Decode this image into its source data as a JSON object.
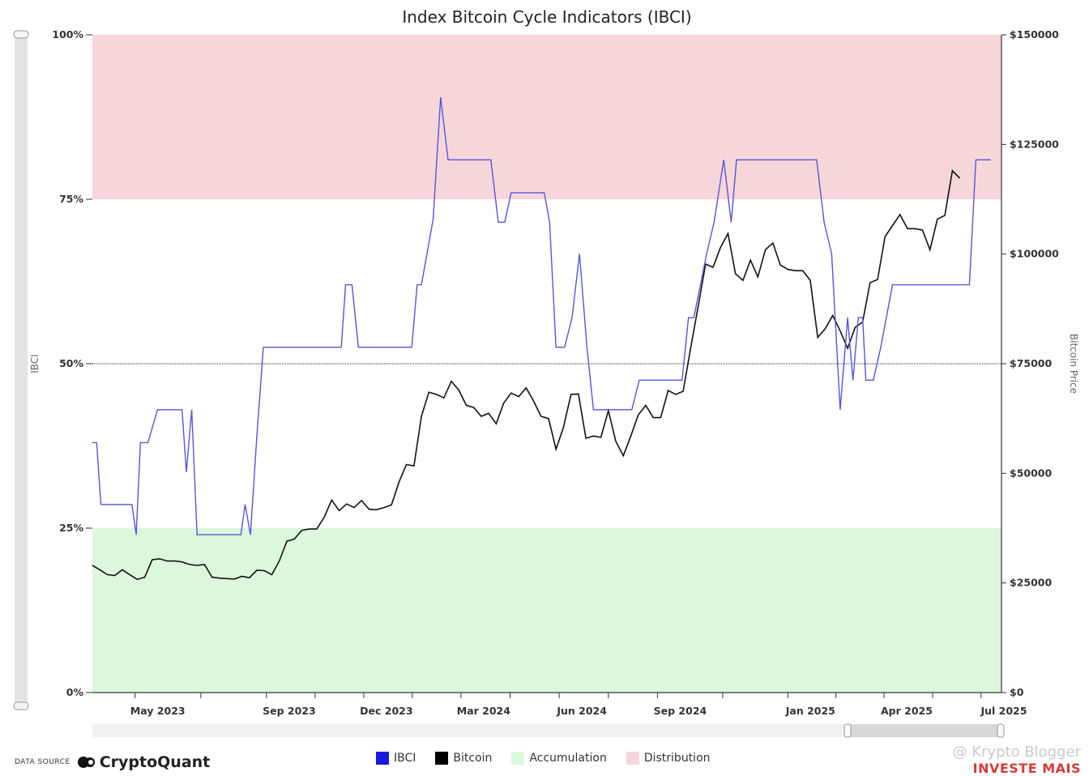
{
  "chart_data": {
    "type": "line",
    "title": "Index Bitcoin Cycle Indicators (IBCI)",
    "y_left_label": "IBCI",
    "y_right_label": "Bitcoin Price",
    "y_left_ticks": [
      "0%",
      "25%",
      "50%",
      "75%",
      "100%"
    ],
    "y_right_ticks": [
      "$0",
      "$25000",
      "$50000",
      "$75000",
      "$100000",
      "$125000",
      "$150000"
    ],
    "ylim_left": [
      0,
      100
    ],
    "ylim_right": [
      0,
      150000
    ],
    "x_range": [
      "2023-03-22",
      "2025-07-20"
    ],
    "x_ticks": [
      {
        "date": "2023-05-01",
        "label": "May 2023"
      },
      {
        "date": "2023-09-01",
        "label": "Sep 2023"
      },
      {
        "date": "2023-12-01",
        "label": "Dec 2023"
      },
      {
        "date": "2024-03-01",
        "label": "Mar 2024"
      },
      {
        "date": "2024-06-01",
        "label": "Jun 2024"
      },
      {
        "date": "2024-09-01",
        "label": "Sep 2024"
      },
      {
        "date": "2025-01-01",
        "label": "Jan 2025"
      },
      {
        "date": "2025-04-01",
        "label": "Apr 2025"
      },
      {
        "date": "2025-07-01",
        "label": "Jul 2025"
      }
    ],
    "reference_line": 50,
    "zones": [
      {
        "name": "Accumulation",
        "from": 0,
        "to": 25,
        "color": "#dcf8dc"
      },
      {
        "name": "Distribution",
        "from": 75,
        "to": 100,
        "color": "#f6d6d8"
      }
    ],
    "series": [
      {
        "name": "IBCI",
        "color": "#5555dd",
        "points": [
          [
            "2023-03-22",
            38
          ],
          [
            "2023-03-26",
            38
          ],
          [
            "2023-03-30",
            28.6
          ],
          [
            "2023-04-28",
            28.6
          ],
          [
            "2023-05-02",
            24
          ],
          [
            "2023-05-06",
            38
          ],
          [
            "2023-05-13",
            38
          ],
          [
            "2023-05-22",
            43
          ],
          [
            "2023-06-14",
            43
          ],
          [
            "2023-06-18",
            33.5
          ],
          [
            "2023-06-23",
            43
          ],
          [
            "2023-06-28",
            24
          ],
          [
            "2023-08-08",
            24
          ],
          [
            "2023-08-12",
            28.6
          ],
          [
            "2023-08-17",
            24
          ],
          [
            "2023-08-23",
            39
          ],
          [
            "2023-08-29",
            52.5
          ],
          [
            "2023-11-10",
            52.5
          ],
          [
            "2023-11-14",
            62
          ],
          [
            "2023-11-20",
            62
          ],
          [
            "2023-11-26",
            52.5
          ],
          [
            "2024-01-15",
            52.5
          ],
          [
            "2024-01-20",
            62
          ],
          [
            "2024-01-24",
            62
          ],
          [
            "2024-02-04",
            72
          ],
          [
            "2024-02-11",
            90.5
          ],
          [
            "2024-02-18",
            81
          ],
          [
            "2024-03-29",
            81
          ],
          [
            "2024-04-05",
            71.5
          ],
          [
            "2024-04-11",
            71.5
          ],
          [
            "2024-04-17",
            76
          ],
          [
            "2024-05-18",
            76
          ],
          [
            "2024-05-23",
            71.5
          ],
          [
            "2024-05-29",
            52.5
          ],
          [
            "2024-06-06",
            52.5
          ],
          [
            "2024-06-13",
            57
          ],
          [
            "2024-06-20",
            66.7
          ],
          [
            "2024-06-27",
            52.5
          ],
          [
            "2024-07-03",
            43
          ],
          [
            "2024-08-08",
            43
          ],
          [
            "2024-08-15",
            47.5
          ],
          [
            "2024-09-24",
            47.5
          ],
          [
            "2024-09-30",
            57
          ],
          [
            "2024-10-05",
            57
          ],
          [
            "2024-10-17",
            66.7
          ],
          [
            "2024-10-24",
            71.5
          ],
          [
            "2024-11-02",
            81
          ],
          [
            "2024-11-09",
            71.5
          ],
          [
            "2024-11-14",
            81
          ],
          [
            "2025-01-28",
            81
          ],
          [
            "2025-02-04",
            71.5
          ],
          [
            "2025-02-11",
            66.7
          ],
          [
            "2025-02-19",
            43
          ],
          [
            "2025-02-26",
            57
          ],
          [
            "2025-03-03",
            47.5
          ],
          [
            "2025-03-08",
            57
          ],
          [
            "2025-03-12",
            57
          ],
          [
            "2025-03-15",
            47.5
          ],
          [
            "2025-03-22",
            47.5
          ],
          [
            "2025-03-29",
            52.5
          ],
          [
            "2025-04-09",
            62
          ],
          [
            "2025-06-20",
            62
          ],
          [
            "2025-06-26",
            81
          ],
          [
            "2025-07-10",
            81
          ]
        ]
      },
      {
        "name": "Bitcoin",
        "color": "#111111",
        "points": [
          [
            "2023-03-22",
            29000
          ],
          [
            "2023-03-29",
            28000
          ],
          [
            "2023-04-05",
            26900
          ],
          [
            "2023-04-12",
            26700
          ],
          [
            "2023-04-19",
            28000
          ],
          [
            "2023-04-26",
            26900
          ],
          [
            "2023-05-03",
            25800
          ],
          [
            "2023-05-10",
            26300
          ],
          [
            "2023-05-17",
            30300
          ],
          [
            "2023-05-24",
            30500
          ],
          [
            "2023-05-31",
            30000
          ],
          [
            "2023-06-07",
            30000
          ],
          [
            "2023-06-14",
            29800
          ],
          [
            "2023-06-21",
            29200
          ],
          [
            "2023-06-28",
            29000
          ],
          [
            "2023-07-05",
            29200
          ],
          [
            "2023-07-12",
            26300
          ],
          [
            "2023-07-19",
            26100
          ],
          [
            "2023-07-26",
            26000
          ],
          [
            "2023-08-02",
            25900
          ],
          [
            "2023-08-09",
            26500
          ],
          [
            "2023-08-16",
            26200
          ],
          [
            "2023-08-23",
            27900
          ],
          [
            "2023-08-30",
            27800
          ],
          [
            "2023-09-06",
            26900
          ],
          [
            "2023-09-13",
            30000
          ],
          [
            "2023-09-20",
            34500
          ],
          [
            "2023-09-27",
            35000
          ],
          [
            "2023-10-04",
            37000
          ],
          [
            "2023-10-11",
            37300
          ],
          [
            "2023-10-18",
            37300
          ],
          [
            "2023-10-25",
            40000
          ],
          [
            "2023-11-01",
            43900
          ],
          [
            "2023-11-08",
            41500
          ],
          [
            "2023-11-15",
            43000
          ],
          [
            "2023-11-22",
            42200
          ],
          [
            "2023-11-29",
            43800
          ],
          [
            "2023-12-06",
            41800
          ],
          [
            "2023-12-13",
            41700
          ],
          [
            "2023-12-20",
            42200
          ],
          [
            "2023-12-27",
            42800
          ],
          [
            "2024-01-03",
            48000
          ],
          [
            "2024-01-10",
            52000
          ],
          [
            "2024-01-17",
            51700
          ],
          [
            "2024-01-24",
            63000
          ],
          [
            "2024-01-31",
            68500
          ],
          [
            "2024-02-07",
            68000
          ],
          [
            "2024-02-14",
            67200
          ],
          [
            "2024-02-21",
            71000
          ],
          [
            "2024-02-28",
            69000
          ],
          [
            "2024-03-06",
            65500
          ],
          [
            "2024-03-13",
            65000
          ],
          [
            "2024-03-20",
            63000
          ],
          [
            "2024-03-27",
            63700
          ],
          [
            "2024-04-03",
            61300
          ],
          [
            "2024-04-10",
            66000
          ],
          [
            "2024-04-17",
            68300
          ],
          [
            "2024-04-24",
            67500
          ],
          [
            "2024-05-01",
            69500
          ],
          [
            "2024-05-08",
            66500
          ],
          [
            "2024-05-15",
            63000
          ],
          [
            "2024-05-22",
            62500
          ],
          [
            "2024-05-29",
            55500
          ],
          [
            "2024-06-05",
            60500
          ],
          [
            "2024-06-12",
            68000
          ],
          [
            "2024-06-19",
            68100
          ],
          [
            "2024-06-26",
            58000
          ],
          [
            "2024-07-03",
            58500
          ],
          [
            "2024-07-10",
            58200
          ],
          [
            "2024-07-17",
            64300
          ],
          [
            "2024-07-24",
            57300
          ],
          [
            "2024-07-31",
            54000
          ],
          [
            "2024-08-07",
            58500
          ],
          [
            "2024-08-14",
            63300
          ],
          [
            "2024-08-21",
            65500
          ],
          [
            "2024-08-28",
            62700
          ],
          [
            "2024-09-04",
            62700
          ],
          [
            "2024-09-11",
            68900
          ],
          [
            "2024-09-18",
            68000
          ],
          [
            "2024-09-25",
            68700
          ],
          [
            "2024-10-02",
            78500
          ],
          [
            "2024-10-09",
            88000
          ],
          [
            "2024-10-16",
            97700
          ],
          [
            "2024-10-23",
            97000
          ],
          [
            "2024-10-30",
            101500
          ],
          [
            "2024-11-06",
            104700
          ],
          [
            "2024-11-13",
            95500
          ],
          [
            "2024-11-20",
            94000
          ],
          [
            "2024-11-27",
            98600
          ],
          [
            "2024-12-04",
            94800
          ],
          [
            "2024-12-11",
            101000
          ],
          [
            "2024-12-18",
            102500
          ],
          [
            "2024-12-25",
            97500
          ],
          [
            "2025-01-01",
            96500
          ],
          [
            "2025-01-08",
            96200
          ],
          [
            "2025-01-15",
            96200
          ],
          [
            "2025-01-22",
            94000
          ],
          [
            "2025-01-29",
            81000
          ],
          [
            "2025-02-05",
            83000
          ],
          [
            "2025-02-12",
            86000
          ],
          [
            "2025-02-19",
            82500
          ],
          [
            "2025-02-26",
            78500
          ],
          [
            "2025-03-05",
            83300
          ],
          [
            "2025-03-12",
            84500
          ],
          [
            "2025-03-19",
            93500
          ],
          [
            "2025-03-26",
            94200
          ],
          [
            "2025-04-02",
            104000
          ],
          [
            "2025-04-09",
            106500
          ],
          [
            "2025-04-16",
            109000
          ],
          [
            "2025-04-23",
            105800
          ],
          [
            "2025-04-30",
            105800
          ],
          [
            "2025-05-07",
            105500
          ],
          [
            "2025-05-14",
            101000
          ],
          [
            "2025-05-21",
            108000
          ],
          [
            "2025-05-28",
            108800
          ],
          [
            "2025-06-04",
            119000
          ],
          [
            "2025-06-11",
            117300
          ]
        ]
      }
    ],
    "legend": [
      "IBCI",
      "Bitcoin",
      "Accumulation",
      "Distribution"
    ],
    "legend_colors": [
      "#1a1adc",
      "#000000",
      "#dcf8dc",
      "#f6d6d8"
    ]
  },
  "source": {
    "label": "DATA SOURCE",
    "brand": "CryptoQuant"
  },
  "watermark": {
    "line1": "@ Krypto Blogger",
    "line2": "INVESTE MAIS"
  }
}
